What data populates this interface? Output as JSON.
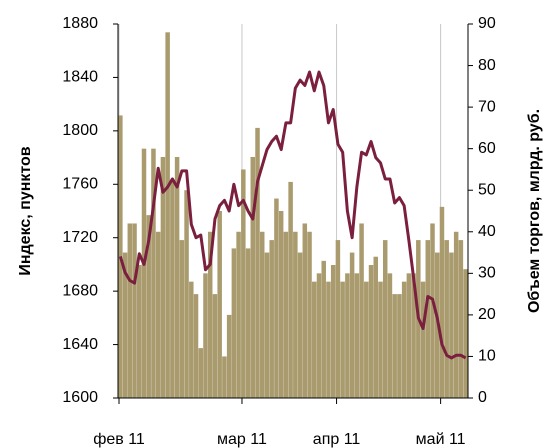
{
  "chart_data": {
    "type": "bar-line",
    "categories": [
      "фев 11",
      null,
      null,
      null,
      null,
      null,
      null,
      null,
      null,
      null,
      null,
      null,
      null,
      null,
      null,
      null,
      null,
      null,
      null,
      null,
      null,
      null,
      null,
      null,
      null,
      null,
      "мар 11",
      null,
      null,
      null,
      null,
      null,
      null,
      null,
      null,
      null,
      null,
      null,
      null,
      null,
      null,
      null,
      null,
      null,
      null,
      null,
      "апр 11",
      null,
      null,
      null,
      null,
      null,
      null,
      null,
      null,
      null,
      null,
      null,
      null,
      null,
      null,
      null,
      null,
      null,
      null,
      null,
      null,
      null,
      "май 11",
      null,
      null,
      null,
      null,
      null
    ],
    "series": [
      {
        "name": "Объем торгов, млрд. руб.",
        "type": "bar",
        "axis": "y2",
        "color": "#a99b6e",
        "values": [
          68,
          35,
          42,
          42,
          32,
          60,
          44,
          60,
          40,
          58,
          88,
          52,
          58,
          38,
          50,
          28,
          25,
          12,
          30,
          40,
          25,
          45,
          10,
          20,
          36,
          40,
          55,
          36,
          58,
          65,
          40,
          35,
          38,
          48,
          45,
          40,
          52,
          40,
          35,
          42,
          40,
          28,
          30,
          33,
          28,
          32,
          38,
          28,
          30,
          35,
          30,
          42,
          28,
          32,
          34,
          28,
          38,
          30,
          25,
          25,
          28,
          30,
          30,
          38,
          28,
          38,
          42,
          35,
          46,
          38,
          35,
          40,
          38,
          31
        ]
      },
      {
        "name": "Индекс, пунктов",
        "type": "line",
        "axis": "y",
        "color": "#7b1f3f",
        "values": [
          1706,
          1694,
          1688,
          1686,
          1708,
          1700,
          1718,
          1744,
          1772,
          1754,
          1758,
          1764,
          1758,
          1770,
          1770,
          1730,
          1720,
          1722,
          1696,
          1700,
          1734,
          1744,
          1748,
          1740,
          1760,
          1744,
          1748,
          1740,
          1734,
          1762,
          1774,
          1786,
          1792,
          1796,
          1786,
          1806,
          1806,
          1832,
          1838,
          1834,
          1844,
          1830,
          1844,
          1834,
          1806,
          1816,
          1790,
          1784,
          1740,
          1720,
          1758,
          1784,
          1782,
          1792,
          1780,
          1776,
          1764,
          1764,
          1746,
          1750,
          1744,
          1718,
          1690,
          1660,
          1652,
          1676,
          1674,
          1660,
          1640,
          1632,
          1630,
          1632,
          1632,
          1630
        ]
      }
    ],
    "ylabel": "Индекс, пунктов",
    "y2label": "Объем торгов, млрд. руб.",
    "ylim": [
      1600,
      1880
    ],
    "yticks": [
      1600,
      1640,
      1680,
      1720,
      1760,
      1800,
      1840,
      1880
    ],
    "y2lim": [
      0,
      90
    ],
    "y2ticks": [
      0,
      10,
      20,
      30,
      40,
      50,
      60,
      70,
      80,
      90
    ],
    "grid": "x"
  }
}
